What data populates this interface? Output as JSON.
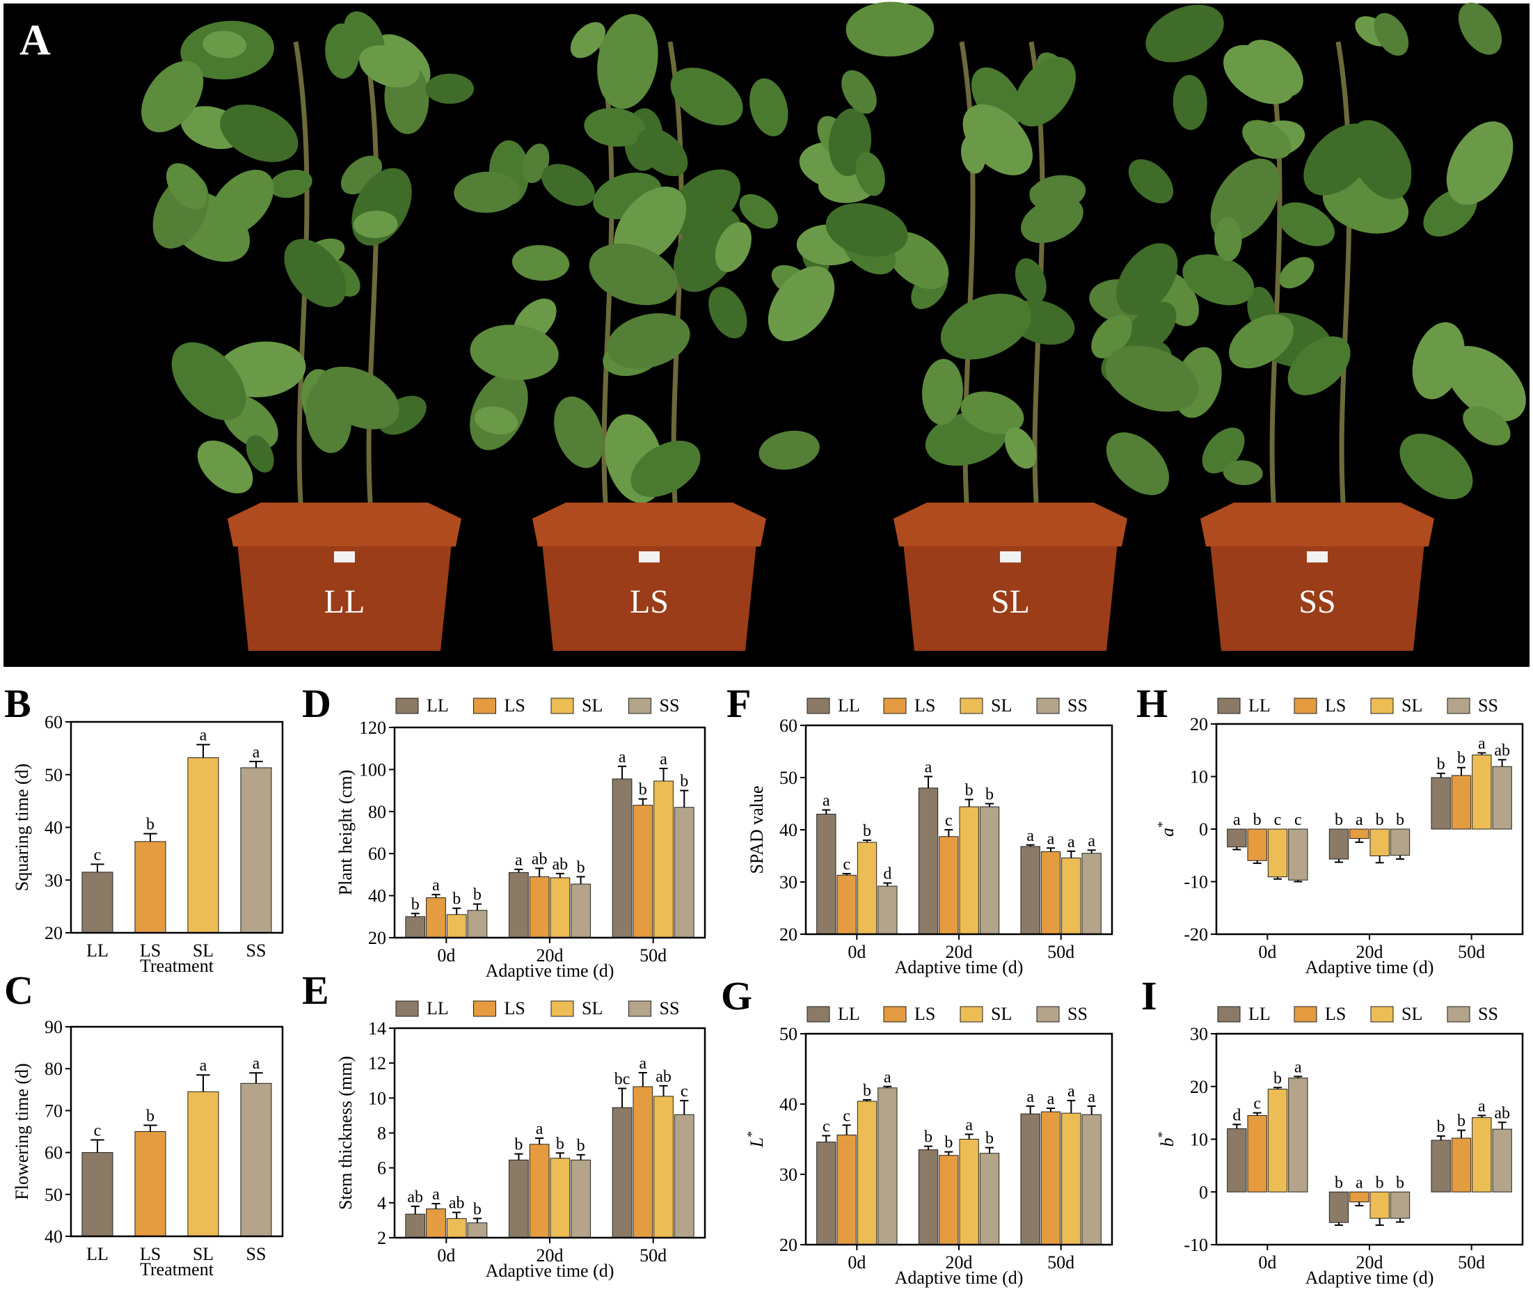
{
  "panel_letters": {
    "a": "A",
    "b": "B",
    "c": "C",
    "d": "D",
    "e": "E",
    "f": "F",
    "g": "G",
    "h": "H",
    "i": "I"
  },
  "photo": {
    "pot_labels": [
      "LL",
      "LS",
      "SL",
      "SS"
    ]
  },
  "colors": {
    "LL": "#8b7a66",
    "LS": "#e59b3f",
    "SL": "#ecbd55",
    "SS": "#b3a48a",
    "photo_bg": "#000000",
    "pot": "#9a3d18",
    "leaf": "#4f7f35"
  },
  "legend": [
    "LL",
    "LS",
    "SL",
    "SS"
  ],
  "chart_data": [
    {
      "panel": "B",
      "type": "bar",
      "categories": [
        "LL",
        "LS",
        "SL",
        "SS"
      ],
      "values": [
        31.5,
        37.3,
        53.2,
        51.3
      ],
      "errors": [
        1.5,
        1.5,
        2.5,
        1.2
      ],
      "letters": [
        "c",
        "b",
        "a",
        "a"
      ],
      "xlabel": "Treatment",
      "ylabel": "Squaring time (d)",
      "ylim": [
        20,
        60
      ],
      "yticks": [
        20,
        30,
        40,
        50,
        60
      ],
      "legend": false
    },
    {
      "panel": "C",
      "type": "bar",
      "categories": [
        "LL",
        "LS",
        "SL",
        "SS"
      ],
      "values": [
        60,
        65,
        74.5,
        76.5
      ],
      "errors": [
        3,
        1.5,
        4,
        2.5
      ],
      "letters": [
        "c",
        "b",
        "a",
        "a"
      ],
      "xlabel": "Treatment",
      "ylabel": "Flowering time (d)",
      "ylim": [
        40,
        90
      ],
      "yticks": [
        40,
        50,
        60,
        70,
        80,
        90
      ],
      "legend": false
    },
    {
      "panel": "D",
      "type": "bar",
      "categories": [
        "0d",
        "20d",
        "50d"
      ],
      "series": [
        {
          "name": "LL",
          "values": [
            30,
            51,
            95.5
          ],
          "errors": [
            1.5,
            1.5,
            6
          ],
          "letters": [
            "b",
            "a",
            "a"
          ]
        },
        {
          "name": "LS",
          "values": [
            39,
            49,
            83
          ],
          "errors": [
            1.5,
            4,
            3
          ],
          "letters": [
            "a",
            "ab",
            "b"
          ]
        },
        {
          "name": "SL",
          "values": [
            31,
            48.5,
            94.5
          ],
          "errors": [
            3,
            2,
            6
          ],
          "letters": [
            "b",
            "ab",
            "a"
          ]
        },
        {
          "name": "SS",
          "values": [
            33,
            45.5,
            82
          ],
          "errors": [
            3,
            3.5,
            8
          ],
          "letters": [
            "b",
            "b",
            "b"
          ]
        }
      ],
      "xlabel": "Adaptive time (d)",
      "ylabel": "Plant height (cm)",
      "ylim": [
        20,
        120
      ],
      "yticks": [
        20,
        40,
        60,
        80,
        100,
        120
      ],
      "legend": true
    },
    {
      "panel": "E",
      "type": "bar",
      "categories": [
        "0d",
        "20d",
        "50d"
      ],
      "series": [
        {
          "name": "LL",
          "values": [
            3.35,
            6.45,
            9.45
          ],
          "errors": [
            0.45,
            0.35,
            1.1
          ],
          "letters": [
            "ab",
            "b",
            "bc"
          ]
        },
        {
          "name": "LS",
          "values": [
            3.65,
            7.35,
            10.65
          ],
          "errors": [
            0.3,
            0.35,
            0.8
          ],
          "letters": [
            "a",
            "a",
            "a"
          ]
        },
        {
          "name": "SL",
          "values": [
            3.1,
            6.55,
            10.1
          ],
          "errors": [
            0.35,
            0.3,
            0.6
          ],
          "letters": [
            "ab",
            "b",
            "ab"
          ]
        },
        {
          "name": "SS",
          "values": [
            2.85,
            6.45,
            9.05
          ],
          "errors": [
            0.25,
            0.3,
            0.8
          ],
          "letters": [
            "b",
            "b",
            "c"
          ]
        }
      ],
      "xlabel": "Adaptive time (d)",
      "ylabel": "Stem thickness (mm)",
      "ylim": [
        2,
        14
      ],
      "yticks": [
        2,
        4,
        6,
        8,
        10,
        12,
        14
      ],
      "legend": true
    },
    {
      "panel": "F",
      "type": "bar",
      "categories": [
        "0d",
        "20d",
        "50d"
      ],
      "series": [
        {
          "name": "LL",
          "values": [
            43,
            48,
            36.8
          ],
          "errors": [
            0.8,
            2.2,
            0.3
          ],
          "letters": [
            "a",
            "a",
            "a"
          ]
        },
        {
          "name": "LS",
          "values": [
            31.3,
            38.7,
            35.8
          ],
          "errors": [
            0.3,
            1.3,
            0.7
          ],
          "letters": [
            "c",
            "c",
            "a"
          ]
        },
        {
          "name": "SL",
          "values": [
            37.6,
            44.4,
            34.6
          ],
          "errors": [
            0.4,
            1.4,
            1.3
          ],
          "letters": [
            "b",
            "b",
            "a"
          ]
        },
        {
          "name": "SS",
          "values": [
            29.2,
            44.4,
            35.5
          ],
          "errors": [
            0.6,
            0.6,
            0.6
          ],
          "letters": [
            "d",
            "b",
            "a"
          ]
        }
      ],
      "xlabel": "Adaptive time (d)",
      "ylabel": "SPAD value",
      "ylim": [
        20,
        60
      ],
      "yticks": [
        20,
        30,
        40,
        50,
        60
      ],
      "legend": true
    },
    {
      "panel": "G",
      "type": "bar",
      "categories": [
        "0d",
        "20d",
        "50d"
      ],
      "series": [
        {
          "name": "LL",
          "values": [
            34.6,
            33.5,
            38.6
          ],
          "errors": [
            0.9,
            0.5,
            1.1
          ],
          "letters": [
            "c",
            "b",
            "a"
          ]
        },
        {
          "name": "LS",
          "values": [
            35.6,
            32.7,
            38.9
          ],
          "errors": [
            1.4,
            0.5,
            0.5
          ],
          "letters": [
            "c",
            "b",
            "a"
          ]
        },
        {
          "name": "SL",
          "values": [
            40.4,
            35,
            38.7
          ],
          "errors": [
            0.2,
            0.7,
            1.8
          ],
          "letters": [
            "b",
            "a",
            "a"
          ]
        },
        {
          "name": "SS",
          "values": [
            42.3,
            33,
            38.5
          ],
          "errors": [
            0.2,
            0.8,
            1.2
          ],
          "letters": [
            "a",
            "b",
            "a"
          ]
        }
      ],
      "xlabel": "Adaptive time (d)",
      "ylabel": "L*",
      "ylim": [
        20,
        50
      ],
      "yticks": [
        20,
        30,
        40,
        50
      ],
      "legend": true
    },
    {
      "panel": "H",
      "type": "bar",
      "categories": [
        "0d",
        "20d",
        "50d"
      ],
      "series": [
        {
          "name": "LL",
          "values": [
            -3.4,
            -5.7,
            9.8
          ],
          "errors": [
            0.5,
            0.6,
            0.8
          ],
          "letters": [
            "a",
            "b",
            "b"
          ]
        },
        {
          "name": "LS",
          "values": [
            -6,
            -1.8,
            10.2
          ],
          "errors": [
            0.5,
            0.7,
            1.5
          ],
          "letters": [
            "b",
            "a",
            "b"
          ]
        },
        {
          "name": "SL",
          "values": [
            -9.1,
            -5.1,
            14.1
          ],
          "errors": [
            0.4,
            1.3,
            0.4
          ],
          "letters": [
            "c",
            "b",
            "a"
          ]
        },
        {
          "name": "SS",
          "values": [
            -9.7,
            -5,
            11.9
          ],
          "errors": [
            0.3,
            0.7,
            1.3
          ],
          "letters": [
            "c",
            "b",
            "ab"
          ]
        }
      ],
      "xlabel": "Adaptive time (d)",
      "ylabel": "a*",
      "ylim": [
        -20,
        20
      ],
      "yticks": [
        -20,
        -10,
        0,
        10,
        20
      ],
      "legend": true
    },
    {
      "panel": "I",
      "type": "bar",
      "categories": [
        "0d",
        "20d",
        "50d"
      ],
      "series": [
        {
          "name": "LL",
          "values": [
            12,
            -5.8,
            9.8
          ],
          "errors": [
            0.8,
            0.5,
            0.8
          ],
          "letters": [
            "d",
            "b",
            "b"
          ]
        },
        {
          "name": "LS",
          "values": [
            14.5,
            -1.9,
            10.2
          ],
          "errors": [
            0.5,
            0.7,
            1.5
          ],
          "letters": [
            "c",
            "a",
            "b"
          ]
        },
        {
          "name": "SL",
          "values": [
            19.5,
            -5,
            14.1
          ],
          "errors": [
            0.3,
            1.3,
            0.4
          ],
          "letters": [
            "b",
            "b",
            "a"
          ]
        },
        {
          "name": "SS",
          "values": [
            21.6,
            -5,
            11.9
          ],
          "errors": [
            0.3,
            0.7,
            1.3
          ],
          "letters": [
            "a",
            "b",
            "ab"
          ]
        }
      ],
      "xlabel": "Adaptive time (d)",
      "ylabel": "b*",
      "ylim": [
        -10,
        30
      ],
      "yticks": [
        -10,
        0,
        10,
        20,
        30
      ],
      "legend": true
    }
  ]
}
